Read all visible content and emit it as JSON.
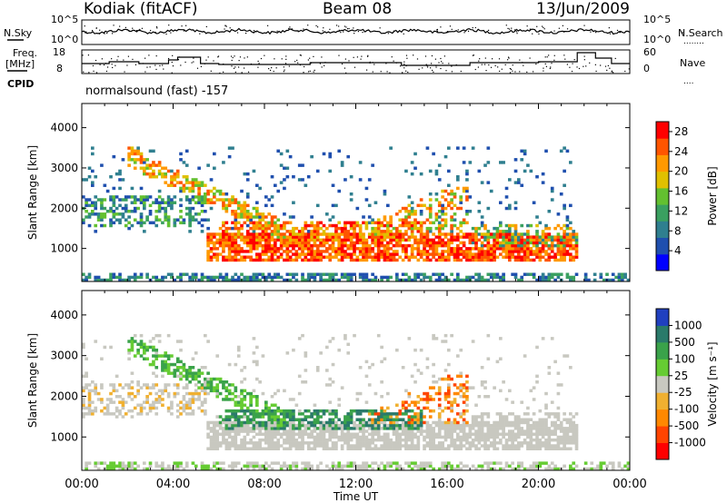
{
  "header": {
    "station": "Kodiak (fitACF)",
    "beam": "Beam 08",
    "date": "13/Jun/2009"
  },
  "strips": {
    "left_top_label": "N.Sky",
    "left_top_ticks": [
      "10^5",
      "10^0"
    ],
    "right_top_label": "N.Search",
    "right_top_ticks": [
      "10^5",
      "10^0"
    ],
    "left_mid_label_1": "Freq.",
    "left_mid_label_2": "[MHz]",
    "left_mid_ticks": [
      "18",
      "8"
    ],
    "right_mid_label": "Nave",
    "right_mid_ticks": [
      "60",
      "0"
    ],
    "cpid_label": "CPID",
    "cpid_value": "normalsound (fast) -157"
  },
  "chart_data": [
    {
      "type": "heatmap",
      "title": "",
      "ylabel": "Slant Range [km]",
      "xlabel": "Time UT",
      "x_ticks": [
        "00:00",
        "04:00",
        "08:00",
        "12:00",
        "16:00",
        "20:00",
        "00:00"
      ],
      "xlim_hours": [
        0,
        24
      ],
      "y_ticks": [
        1000,
        2000,
        3000,
        4000
      ],
      "ylim": [
        180,
        4600
      ],
      "colorbar": {
        "label": "Power [dB]",
        "ticks": [
          4,
          8,
          12,
          16,
          20,
          24,
          28
        ],
        "range": [
          0,
          30
        ],
        "colors": [
          "#0000ff",
          "#1f4fae",
          "#2f7f8f",
          "#3aa060",
          "#63c030",
          "#e0c000",
          "#ff9900",
          "#ff5500",
          "#ff0000"
        ]
      },
      "features": [
        {
          "desc": "ground scatter band",
          "time_h": [
            5.5,
            22
          ],
          "range_km": [
            700,
            1400
          ],
          "level_dB": 26
        },
        {
          "desc": "ionospheric echoes morning",
          "time_h": [
            1,
            6
          ],
          "range_km": [
            1800,
            3500
          ],
          "level_dB": 14
        },
        {
          "desc": "near-range clutter",
          "time_h": [
            0,
            24
          ],
          "range_km": [
            200,
            400
          ],
          "level_dB": 10
        }
      ]
    },
    {
      "type": "heatmap",
      "title": "",
      "ylabel": "Slant Range [km]",
      "xlabel": "Time UT",
      "x_ticks": [
        "00:00",
        "04:00",
        "08:00",
        "12:00",
        "16:00",
        "20:00",
        "00:00"
      ],
      "xlim_hours": [
        0,
        24
      ],
      "y_ticks": [
        1000,
        2000,
        3000,
        4000
      ],
      "ylim": [
        180,
        4600
      ],
      "colorbar": {
        "label": "Velocity [m s⁻¹]",
        "ticks": [
          "1000",
          "500",
          "100",
          "25",
          "-25",
          "-100",
          "-500",
          "-1000"
        ],
        "colors": [
          "#2040c0",
          "#2a7a6a",
          "#3aa24a",
          "#66cc33",
          "#c8c8c0",
          "#f0b030",
          "#ff8800",
          "#ff4400",
          "#ff0000"
        ]
      },
      "features": [
        {
          "desc": "ground scatter (near zero velocity)",
          "time_h": [
            5.5,
            22
          ],
          "range_km": [
            700,
            1400
          ],
          "velocity": 0
        },
        {
          "desc": "positive velocity morning arc",
          "time_h": [
            2,
            9
          ],
          "range_km": [
            1500,
            3300
          ],
          "velocity": 300
        },
        {
          "desc": "negative velocity afternoon",
          "time_h": [
            12,
            17
          ],
          "range_km": [
            1200,
            2500
          ],
          "velocity": -400
        }
      ]
    }
  ]
}
